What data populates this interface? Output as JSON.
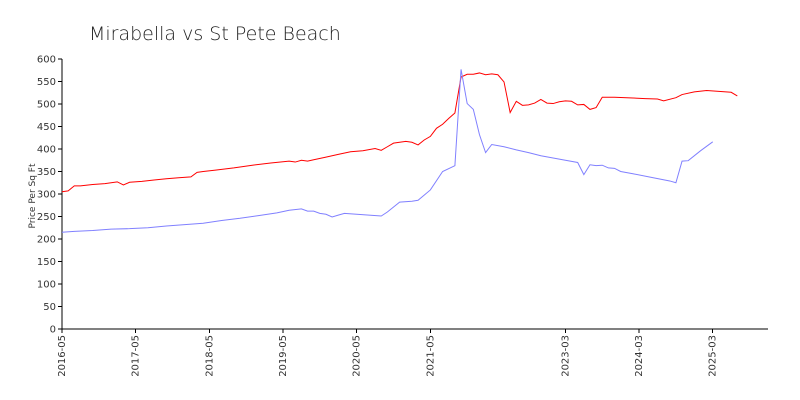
{
  "chart_data": {
    "type": "line",
    "title": "Mirabella vs St Pete Beach",
    "xlabel": "",
    "ylabel": "Price Per Sq Ft",
    "ylim": [
      0,
      600
    ],
    "xlim": [
      "2016-05",
      "2025-12"
    ],
    "grid": false,
    "legend": "none",
    "x_ticks": [
      "2016-05",
      "2017-05",
      "2018-05",
      "2019-05",
      "2020-05",
      "2021-05",
      "2023-03",
      "2024-03",
      "2025-03"
    ],
    "y_ticks": [
      0,
      50,
      100,
      150,
      200,
      250,
      300,
      350,
      400,
      450,
      500,
      550,
      600
    ],
    "series": [
      {
        "color": "#ff0000",
        "points": [
          [
            "2016-05",
            305
          ],
          [
            "2016-06",
            307
          ],
          [
            "2016-07",
            318
          ],
          [
            "2016-08",
            318
          ],
          [
            "2016-10",
            321
          ],
          [
            "2016-12",
            323
          ],
          [
            "2017-02",
            327
          ],
          [
            "2017-03",
            320
          ],
          [
            "2017-04",
            326
          ],
          [
            "2017-06",
            328
          ],
          [
            "2017-08",
            331
          ],
          [
            "2017-10",
            334
          ],
          [
            "2017-12",
            336
          ],
          [
            "2018-02",
            338
          ],
          [
            "2018-03",
            348
          ],
          [
            "2018-04",
            350
          ],
          [
            "2018-06",
            353
          ],
          [
            "2018-09",
            358
          ],
          [
            "2018-12",
            364
          ],
          [
            "2019-03",
            369
          ],
          [
            "2019-06",
            373
          ],
          [
            "2019-07",
            371
          ],
          [
            "2019-08",
            375
          ],
          [
            "2019-09",
            373
          ],
          [
            "2019-10",
            376
          ],
          [
            "2019-12",
            382
          ],
          [
            "2020-02",
            388
          ],
          [
            "2020-04",
            394
          ],
          [
            "2020-06",
            396
          ],
          [
            "2020-08",
            401
          ],
          [
            "2020-09",
            397
          ],
          [
            "2020-10",
            405
          ],
          [
            "2020-11",
            413
          ],
          [
            "2021-01",
            417
          ],
          [
            "2021-02",
            415
          ],
          [
            "2021-03",
            409
          ],
          [
            "2021-04",
            420
          ],
          [
            "2021-05",
            428
          ],
          [
            "2021-06",
            446
          ],
          [
            "2021-07",
            455
          ],
          [
            "2021-08",
            468
          ],
          [
            "2021-09",
            480
          ],
          [
            "2021-10",
            560
          ],
          [
            "2021-11",
            566
          ],
          [
            "2021-12",
            566
          ],
          [
            "2022-01",
            569
          ],
          [
            "2022-02",
            565
          ],
          [
            "2022-03",
            567
          ],
          [
            "2022-04",
            565
          ],
          [
            "2022-05",
            549
          ],
          [
            "2022-06",
            481
          ],
          [
            "2022-07",
            506
          ],
          [
            "2022-08",
            497
          ],
          [
            "2022-09",
            498
          ],
          [
            "2022-10",
            502
          ],
          [
            "2022-11",
            510
          ],
          [
            "2022-12",
            502
          ],
          [
            "2023-01",
            501
          ],
          [
            "2023-02",
            505
          ],
          [
            "2023-03",
            507
          ],
          [
            "2023-04",
            506
          ],
          [
            "2023-05",
            498
          ],
          [
            "2023-06",
            499
          ],
          [
            "2023-07",
            488
          ],
          [
            "2023-08",
            492
          ],
          [
            "2023-09",
            515
          ],
          [
            "2023-11",
            515
          ],
          [
            "2024-01",
            514
          ],
          [
            "2024-04",
            512
          ],
          [
            "2024-06",
            511
          ],
          [
            "2024-07",
            507
          ],
          [
            "2024-09",
            514
          ],
          [
            "2024-10",
            521
          ],
          [
            "2024-12",
            527
          ],
          [
            "2025-02",
            530
          ],
          [
            "2025-04",
            528
          ],
          [
            "2025-06",
            526
          ],
          [
            "2025-07",
            518
          ]
        ]
      },
      {
        "color": "#8080ff",
        "points": [
          [
            "2016-05",
            215
          ],
          [
            "2016-07",
            217
          ],
          [
            "2016-10",
            219
          ],
          [
            "2017-01",
            222
          ],
          [
            "2017-04",
            223
          ],
          [
            "2017-07",
            225
          ],
          [
            "2017-10",
            229
          ],
          [
            "2018-01",
            232
          ],
          [
            "2018-04",
            235
          ],
          [
            "2018-07",
            241
          ],
          [
            "2018-10",
            246
          ],
          [
            "2019-01",
            252
          ],
          [
            "2019-04",
            258
          ],
          [
            "2019-06",
            264
          ],
          [
            "2019-08",
            267
          ],
          [
            "2019-09",
            262
          ],
          [
            "2019-10",
            262
          ],
          [
            "2019-11",
            257
          ],
          [
            "2019-12",
            255
          ],
          [
            "2020-01",
            249
          ],
          [
            "2020-02",
            253
          ],
          [
            "2020-03",
            257
          ],
          [
            "2020-05",
            255
          ],
          [
            "2020-07",
            253
          ],
          [
            "2020-09",
            251
          ],
          [
            "2020-10",
            260
          ],
          [
            "2020-12",
            282
          ],
          [
            "2021-02",
            284
          ],
          [
            "2021-03",
            286
          ],
          [
            "2021-05",
            309
          ],
          [
            "2021-07",
            350
          ],
          [
            "2021-09",
            363
          ],
          [
            "2021-10",
            577
          ],
          [
            "2021-11",
            501
          ],
          [
            "2021-12",
            488
          ],
          [
            "2022-01",
            432
          ],
          [
            "2022-02",
            392
          ],
          [
            "2022-03",
            410
          ],
          [
            "2022-05",
            405
          ],
          [
            "2022-07",
            398
          ],
          [
            "2022-09",
            392
          ],
          [
            "2022-11",
            385
          ],
          [
            "2023-01",
            380
          ],
          [
            "2023-03",
            375
          ],
          [
            "2023-05",
            370
          ],
          [
            "2023-06",
            343
          ],
          [
            "2023-07",
            365
          ],
          [
            "2023-08",
            363
          ],
          [
            "2023-09",
            364
          ],
          [
            "2023-10",
            358
          ],
          [
            "2023-11",
            357
          ],
          [
            "2023-12",
            350
          ],
          [
            "2024-02",
            345
          ],
          [
            "2024-05",
            337
          ],
          [
            "2024-08",
            329
          ],
          [
            "2024-09",
            325
          ],
          [
            "2024-10",
            373
          ],
          [
            "2024-11",
            374
          ],
          [
            "2025-01",
            396
          ],
          [
            "2025-03",
            416
          ]
        ]
      }
    ]
  }
}
